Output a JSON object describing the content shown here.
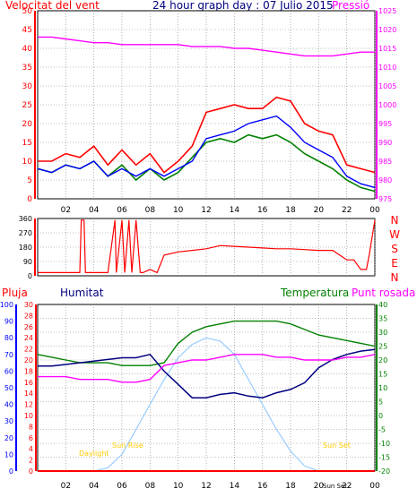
{
  "header": {
    "wind_label": "Velocitat del vent",
    "title": "24 hour graph day : 07 Julio 2015",
    "pressure_label": "Pressió"
  },
  "labels": {
    "rain": "Pluja",
    "humidity": "Humitat",
    "temperature": "Temperatura",
    "dewpoint": "Punt rosada",
    "dir_letters": [
      "N",
      "W",
      "S",
      "E",
      "N"
    ],
    "sun_annotations": [
      "Sun Rise",
      "Sun Set",
      "Daylight",
      "Sun Set"
    ]
  },
  "colors": {
    "wind_gust": "#ff0000",
    "wind_avg": "#008000",
    "wind_mean": "#0000ff",
    "pressure": "#ff00ff",
    "direction": "#ff0000",
    "humidity": "#000080",
    "temperature": "#008000",
    "dewpoint": "#ff00ff",
    "solar": "#99ccff",
    "rain": "#ff0000",
    "grid": "#808080",
    "sun_text": "#ffcc00"
  },
  "chart_data": [
    {
      "type": "line",
      "name": "wind-pressure",
      "x_ticks": [
        "02",
        "04",
        "06",
        "08",
        "10",
        "12",
        "14",
        "16",
        "18",
        "20",
        "22",
        "00"
      ],
      "left_axis": {
        "label": "Velocitat del vent",
        "ylim": [
          0,
          50
        ],
        "ticks": [
          0,
          5,
          10,
          15,
          20,
          25,
          30,
          35,
          40,
          45,
          50
        ]
      },
      "right_axis": {
        "label": "Pressió",
        "ylim": [
          975,
          1025
        ],
        "ticks": [
          975,
          980,
          985,
          990,
          995,
          1000,
          1005,
          1010,
          1015,
          1020,
          1025
        ]
      },
      "x_hours": [
        0,
        1,
        2,
        3,
        4,
        5,
        6,
        7,
        8,
        9,
        10,
        11,
        12,
        13,
        14,
        15,
        16,
        17,
        18,
        19,
        20,
        21,
        22,
        23,
        24
      ],
      "gust": [
        10,
        10,
        12,
        11,
        14,
        9,
        13,
        9,
        12,
        7,
        10,
        14,
        23,
        24,
        25,
        24,
        24,
        27,
        26,
        20,
        18,
        17,
        9,
        8,
        7
      ],
      "average": [
        8,
        7,
        9,
        8,
        10,
        6,
        9,
        5,
        8,
        5,
        7,
        11,
        15,
        16,
        15,
        17,
        16,
        17,
        15,
        12,
        10,
        8,
        5,
        3,
        2
      ],
      "mean": [
        8,
        7,
        9,
        8,
        10,
        6,
        8,
        6,
        8,
        6,
        8,
        10,
        16,
        17,
        18,
        20,
        21,
        22,
        19,
        15,
        13,
        11,
        6,
        4,
        3
      ],
      "pressure": [
        1018,
        1018,
        1017.5,
        1017,
        1016.5,
        1016.5,
        1016,
        1016,
        1016,
        1016,
        1016,
        1015.5,
        1015.5,
        1015.5,
        1015,
        1015,
        1014.5,
        1014,
        1013.5,
        1013,
        1013,
        1013,
        1013.5,
        1014,
        1014
      ]
    },
    {
      "type": "line",
      "name": "wind-direction",
      "left_axis": {
        "ylim": [
          0,
          360
        ],
        "ticks": [
          0,
          90,
          180,
          270,
          360
        ]
      },
      "x_hours": [
        0,
        1,
        2,
        3,
        3.1,
        3.3,
        3.4,
        4,
        5,
        5.5,
        5.6,
        6,
        6.2,
        6.5,
        6.7,
        7,
        7.3,
        7.5,
        8,
        8.5,
        9,
        10,
        11,
        12,
        13,
        14,
        15,
        16,
        17,
        18,
        19,
        20,
        21,
        22,
        22.5,
        23,
        23.4,
        23.6,
        24
      ],
      "direction": [
        20,
        20,
        20,
        20,
        350,
        350,
        20,
        20,
        20,
        350,
        20,
        350,
        20,
        350,
        20,
        350,
        20,
        20,
        40,
        20,
        130,
        150,
        160,
        170,
        190,
        185,
        180,
        175,
        170,
        170,
        165,
        160,
        160,
        100,
        100,
        40,
        40,
        130,
        350
      ]
    },
    {
      "type": "line",
      "name": "temp-humidity-rain",
      "left_axis_rain": {
        "label": "Pluja",
        "ylim": [
          0,
          100
        ],
        "ticks": [
          0,
          10,
          20,
          30,
          40,
          50,
          60,
          70,
          80,
          90,
          100
        ]
      },
      "left_axis_humidity": {
        "label": "Humitat",
        "ylim": [
          0,
          30
        ],
        "ticks": [
          0,
          2,
          4,
          6,
          8,
          10,
          12,
          14,
          16,
          18,
          20,
          22,
          24,
          26,
          28,
          30
        ]
      },
      "right_axis": {
        "label": "Temperatura",
        "ylim": [
          -20,
          40
        ],
        "ticks": [
          -20,
          -15,
          -10,
          -5,
          0,
          5,
          10,
          15,
          20,
          25,
          30,
          35,
          40
        ]
      },
      "x_hours": [
        0,
        1,
        2,
        3,
        4,
        5,
        6,
        7,
        8,
        9,
        10,
        11,
        12,
        13,
        14,
        15,
        16,
        17,
        18,
        19,
        20,
        21,
        22,
        23,
        24
      ],
      "temperature": [
        22,
        21,
        20,
        19,
        19,
        19,
        18,
        18,
        18,
        19,
        26,
        30,
        32,
        33,
        34,
        34,
        34,
        34,
        33,
        31,
        29,
        28,
        27,
        26,
        25
      ],
      "humidity": [
        63,
        63,
        64,
        65,
        66,
        67,
        68,
        68,
        70,
        60,
        52,
        44,
        44,
        46,
        47,
        45,
        44,
        47,
        49,
        53,
        62,
        67,
        70,
        72,
        73
      ],
      "dewpoint": [
        14,
        14,
        14,
        13,
        13,
        13,
        12,
        12,
        13,
        18,
        19,
        20,
        20,
        21,
        22,
        22,
        22,
        21,
        21,
        20,
        20,
        20,
        21,
        21,
        22
      ],
      "solar_pct": [
        0,
        0,
        0,
        0,
        0,
        2,
        10,
        25,
        40,
        55,
        68,
        76,
        80,
        78,
        70,
        55,
        40,
        25,
        12,
        3,
        0,
        0,
        0,
        0,
        0
      ],
      "rain": [
        0,
        0,
        0,
        0,
        0,
        0,
        0,
        0,
        0,
        0,
        0,
        0,
        0,
        0,
        0,
        0,
        0,
        0,
        0,
        0,
        0,
        0,
        0,
        0,
        0
      ]
    }
  ]
}
